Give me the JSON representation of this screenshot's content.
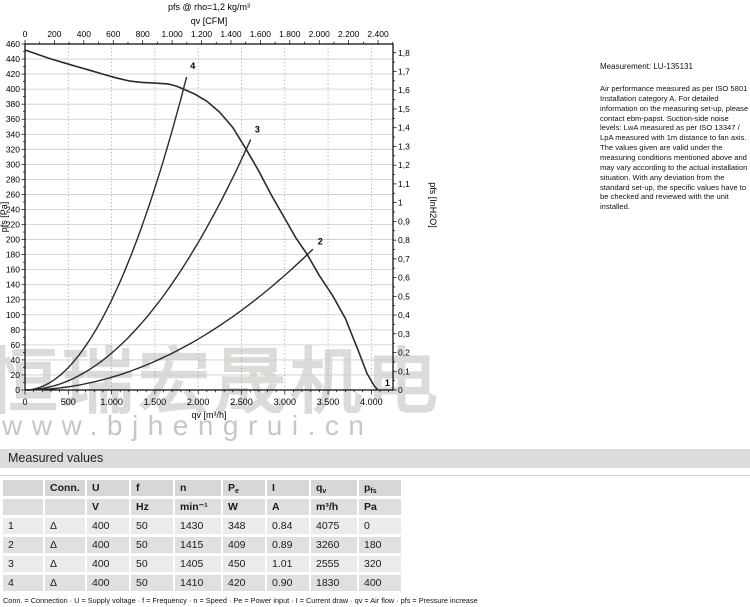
{
  "colors": {
    "curve": "#2b2b2b",
    "grid_h": "#cccccc",
    "grid_v": "#8f8f8f",
    "axis": "#000000",
    "watermark_cjk": "#bcb9b1",
    "watermark_url": "#c6c6c6",
    "band_bg": "#dcdcdc",
    "cell_header_bg": "#d7d7d7",
    "cell_odd_bg": "#ebebeb",
    "cell_even_bg": "#e0e0e0"
  },
  "watermark": {
    "cjk": "恒瑞宏晟机电",
    "url": "www.bjhengrui.cn"
  },
  "note": {
    "measurement": "Measurement: LU-135131",
    "body": "Air performance measured as per ISO 5801 Installation category A. For detailed information on the measuring set-up, please contact ebm-papst. Suction-side noise levels: LwA measured as per ISO 13347 / LpA measured with 1m distance to fan axis. The values given are valid under the measuring conditions mentioned above and may vary according to the actual installation situation. With any deviation from the standard set-up, the specific values have to be checked and reviewed with the unit installed."
  },
  "chart_data": {
    "type": "line",
    "title": "pfs @ rho=1,2 kg/m³",
    "x_axis_bottom": {
      "label": "qv [m³/h]",
      "min": 0,
      "max": 4250,
      "major_ticks": [
        0,
        500,
        1000,
        1500,
        2000,
        2500,
        3000,
        3500,
        4000
      ],
      "tick_labels": [
        "0",
        "500",
        "1.000",
        "1.500",
        "2.000",
        "2.500",
        "3.000",
        "3.500",
        "4.000"
      ],
      "minor_step": 100
    },
    "x_axis_top": {
      "label": "qv [CFM]",
      "m3h_per_cfm": 1.699,
      "major_ticks": [
        0,
        200,
        400,
        600,
        800,
        1000,
        1200,
        1400,
        1600,
        1800,
        2000,
        2200,
        2400
      ],
      "tick_labels": [
        "0",
        "200",
        "400",
        "600",
        "800",
        "1.000",
        "1.200",
        "1.400",
        "1.600",
        "1.800",
        "2.000",
        "2.200",
        "2.400"
      ],
      "minor_step": 100
    },
    "y_axis_left": {
      "label": "pfs [Pa]",
      "min": 0,
      "max": 460,
      "major_step": 20,
      "minor_step": 10
    },
    "y_axis_right": {
      "label": "pfs [InH2O]",
      "min": 0,
      "max": 1.8,
      "major_step": 0.1,
      "minor_step": 0.05,
      "pa_per_inh2o": 249.089,
      "tick_labels": [
        "0",
        "0,1",
        "0,2",
        "0,3",
        "0,4",
        "0,5",
        "0,6",
        "0,7",
        "0,8",
        "0,9",
        "1",
        "1,1",
        "1,2",
        "1,3",
        "1,4",
        "1,5",
        "1,6",
        "1,7",
        "1,8"
      ]
    },
    "fan_curve": [
      [
        0,
        452
      ],
      [
        150,
        446
      ],
      [
        300,
        440
      ],
      [
        450,
        435
      ],
      [
        600,
        430
      ],
      [
        750,
        425
      ],
      [
        900,
        420
      ],
      [
        1050,
        415
      ],
      [
        1200,
        411
      ],
      [
        1350,
        409
      ],
      [
        1500,
        408
      ],
      [
        1650,
        407
      ],
      [
        1750,
        404
      ],
      [
        1830,
        400
      ],
      [
        1950,
        394
      ],
      [
        2100,
        384
      ],
      [
        2250,
        369
      ],
      [
        2400,
        349
      ],
      [
        2555,
        320
      ],
      [
        2700,
        291
      ],
      [
        2850,
        258
      ],
      [
        3000,
        228
      ],
      [
        3130,
        202
      ],
      [
        3260,
        180
      ],
      [
        3400,
        152
      ],
      [
        3550,
        126
      ],
      [
        3700,
        95
      ],
      [
        3850,
        52
      ],
      [
        3950,
        22
      ],
      [
        4030,
        6
      ],
      [
        4075,
        0
      ]
    ],
    "operating_points": [
      {
        "label": "1",
        "qv": 4075,
        "pfs": 0
      },
      {
        "label": "2",
        "qv": 3260,
        "pfs": 180
      },
      {
        "label": "3",
        "qv": 2555,
        "pfs": 320
      },
      {
        "label": "4",
        "qv": 1830,
        "pfs": 400
      }
    ]
  },
  "measured_values": {
    "title": "Measured values",
    "columns": [
      {
        "t": "",
        "s": ""
      },
      {
        "t": "Conn.",
        "s": ""
      },
      {
        "t": "U",
        "s": ""
      },
      {
        "t": "f",
        "s": ""
      },
      {
        "t": "n",
        "s": ""
      },
      {
        "t": "P",
        "s": "e"
      },
      {
        "t": "I",
        "s": ""
      },
      {
        "t": "q",
        "s": "v"
      },
      {
        "t": "p",
        "s": "fs"
      }
    ],
    "units": [
      "",
      "",
      "V",
      "Hz",
      "min⁻¹",
      "W",
      "A",
      "m³/h",
      "Pa"
    ],
    "rows": [
      [
        "1",
        "Δ",
        "400",
        "50",
        "1430",
        "348",
        "0.84",
        "4075",
        "0"
      ],
      [
        "2",
        "Δ",
        "400",
        "50",
        "1415",
        "409",
        "0.89",
        "3260",
        "180"
      ],
      [
        "3",
        "Δ",
        "400",
        "50",
        "1405",
        "450",
        "1.01",
        "2555",
        "320"
      ],
      [
        "4",
        "Δ",
        "400",
        "50",
        "1410",
        "420",
        "0.90",
        "1830",
        "400"
      ]
    ],
    "legend": "Conn. = Connection · U = Supply voltage · f = Frequency · n = Speed · Pe = Power input · I = Current draw · qv = Air flow · pfs = Pressure increase"
  }
}
